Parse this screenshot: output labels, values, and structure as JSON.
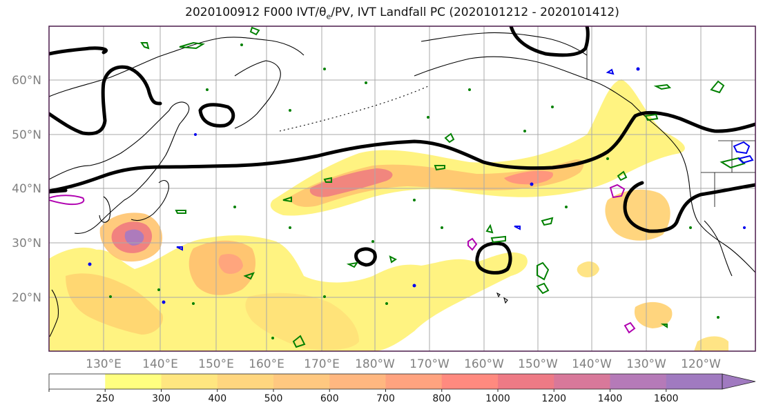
{
  "title": {
    "prefix": "2020100912 F000 IVT/θ",
    "sub": "e",
    "suffix": "/PV, IVT Landfall PC (2020101212 - 2020101412)"
  },
  "map": {
    "lat_labels": [
      "60°N",
      "50°N",
      "40°N",
      "30°N",
      "20°N"
    ],
    "lon_labels": [
      "130°E",
      "140°E",
      "150°E",
      "160°E",
      "170°E",
      "180°W",
      "170°W",
      "160°W",
      "150°W",
      "140°W",
      "130°W",
      "120°W"
    ],
    "colors": {
      "frame": "#4a1a4a",
      "grid": "#a9a9a9",
      "coast": "#000000",
      "contour_black": "#000000",
      "contour_green": "#008000",
      "contour_magenta": "#b000b0",
      "contour_blue": "#0000ee"
    }
  },
  "colorbar": {
    "levels": [
      250,
      300,
      400,
      500,
      600,
      700,
      800,
      1000,
      1200,
      1400,
      1600
    ],
    "labels": [
      "250",
      "300",
      "400",
      "500",
      "600",
      "700",
      "800",
      "1000",
      "1200",
      "1400",
      "1600"
    ],
    "colors": [
      "#ffffff",
      "#ffff80",
      "#ffe680",
      "#ffd67f",
      "#ffc880",
      "#ffb780",
      "#ffa37f",
      "#ff8a7f",
      "#ee7a85",
      "#d8789a",
      "#b57ab8",
      "#a07ac0"
    ]
  }
}
